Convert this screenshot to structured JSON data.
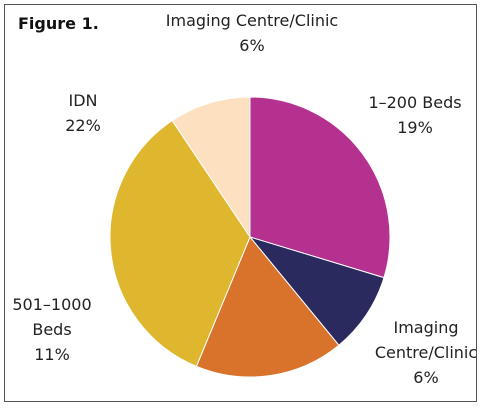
{
  "chart_data": {
    "type": "pie",
    "title": "Figure 1.",
    "categories": [
      "1–200 Beds",
      "Imaging Centre/Clinic",
      "501–1000 Beds",
      "IDN",
      "Imaging Centre/Clinic"
    ],
    "values": [
      19,
      6,
      11,
      22,
      6
    ],
    "value_labels": [
      "19%",
      "6%",
      "11%",
      "22%",
      "6%"
    ],
    "colors": [
      "#b5318f",
      "#2b2a5e",
      "#d9732b",
      "#dfb72e",
      "#fde0c0"
    ]
  }
}
